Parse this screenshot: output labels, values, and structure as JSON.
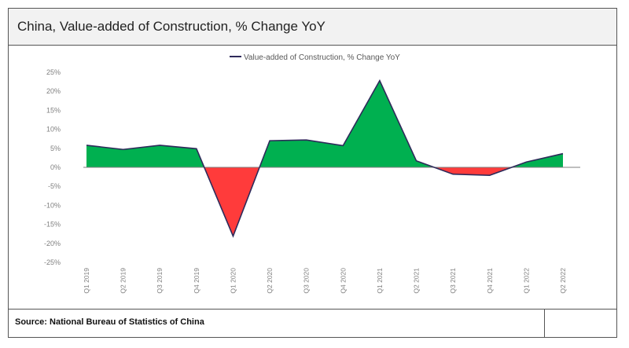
{
  "header": {
    "title": "China, Value-added of Construction, % Change YoY"
  },
  "footer": {
    "source": "Source: National Bureau of Statistics of China"
  },
  "colors": {
    "positive_fill": "#00b050",
    "negative_fill": "#ff3b3b",
    "line": "#2e2a5a",
    "axis_text": "#808080"
  },
  "chart_data": {
    "type": "area",
    "title": "",
    "legend": [
      "Value-added of Construction, % Change YoY"
    ],
    "legend_position": "top",
    "x": [
      "Q1 2019",
      "Q2 2019",
      "Q3 2019",
      "Q4 2019",
      "Q1 2020",
      "Q2 2020",
      "Q3 2020",
      "Q4 2020",
      "Q1 2021",
      "Q2 2021",
      "Q3 2021",
      "Q4 2021",
      "Q1 2022",
      "Q2 2022"
    ],
    "series": [
      {
        "name": "Value-added of Construction, % Change YoY",
        "values": [
          5.8,
          4.7,
          5.8,
          4.9,
          -18.1,
          7.0,
          7.2,
          5.7,
          22.8,
          1.7,
          -1.8,
          -2.1,
          1.4,
          3.6
        ]
      }
    ],
    "ylim": [
      -25,
      25
    ],
    "yticks": [
      25,
      20,
      15,
      10,
      5,
      0,
      -5,
      -10,
      -15,
      -20,
      -25
    ],
    "ytick_labels": [
      "25%",
      "20%",
      "15%",
      "10%",
      "5%",
      "0%",
      "-5%",
      "-10%",
      "-15%",
      "-20%",
      "-25%"
    ],
    "grid": false
  }
}
